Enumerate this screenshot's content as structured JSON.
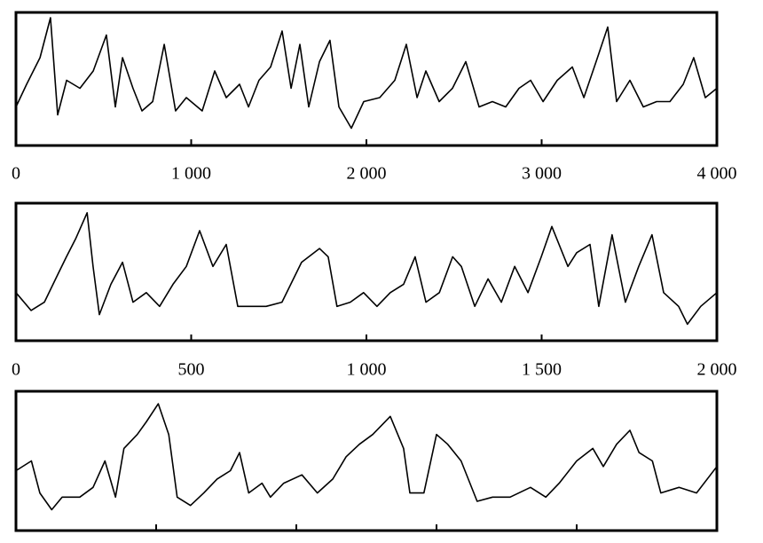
{
  "chart_data": [
    {
      "type": "line",
      "color": "#000000",
      "xlim": [
        0,
        4000
      ],
      "ylim": [
        0,
        10
      ],
      "xticks": [
        0,
        {
          "value": 1000,
          "label": "1 000"
        },
        {
          "value": 2000,
          "label": "2 000"
        },
        {
          "value": 3000,
          "label": "3 000"
        },
        {
          "value": 4000,
          "label": "4 000"
        }
      ],
      "x": [
        0,
        61,
        137,
        197,
        238,
        289,
        365,
        441,
        516,
        567,
        608,
        668,
        719,
        780,
        846,
        911,
        972,
        1063,
        1134,
        1200,
        1276,
        1327,
        1387,
        1453,
        1519,
        1570,
        1620,
        1671,
        1732,
        1792,
        1843,
        1914,
        1985,
        2076,
        2162,
        2228,
        2289,
        2339,
        2415,
        2491,
        2567,
        2643,
        2719,
        2795,
        2871,
        2937,
        3008,
        3089,
        3175,
        3241,
        3311,
        3377,
        3428,
        3504,
        3580,
        3656,
        3732,
        3808,
        3868,
        3934,
        4000
      ],
      "values": [
        2.9,
        4.6,
        6.6,
        9.6,
        2.3,
        4.9,
        4.3,
        5.6,
        8.3,
        2.9,
        6.6,
        4.3,
        2.6,
        3.3,
        7.6,
        2.6,
        3.6,
        2.6,
        5.6,
        3.6,
        4.6,
        2.9,
        4.9,
        5.9,
        8.6,
        4.3,
        7.6,
        2.9,
        6.3,
        7.9,
        2.9,
        1.3,
        3.3,
        3.6,
        4.9,
        7.6,
        3.6,
        5.6,
        3.3,
        4.3,
        6.3,
        2.9,
        3.3,
        2.9,
        4.3,
        4.9,
        3.3,
        4.9,
        5.9,
        3.6,
        6.3,
        8.9,
        3.3,
        4.9,
        2.9,
        3.3,
        3.3,
        4.6,
        6.6,
        3.6,
        4.3
      ]
    },
    {
      "type": "line",
      "color": "#000000",
      "xlim": [
        0,
        2000
      ],
      "ylim": [
        0,
        10
      ],
      "xticks": [
        0,
        500,
        {
          "value": 1000,
          "label": "1 000"
        },
        {
          "value": 1500,
          "label": "1 500"
        },
        {
          "value": 2000,
          "label": "2 000"
        }
      ],
      "x": [
        0,
        43,
        81,
        119,
        144,
        170,
        203,
        220,
        238,
        271,
        304,
        334,
        372,
        410,
        448,
        486,
        524,
        562,
        600,
        633,
        676,
        714,
        759,
        815,
        866,
        891,
        916,
        954,
        992,
        1030,
        1068,
        1106,
        1139,
        1170,
        1208,
        1246,
        1271,
        1309,
        1347,
        1385,
        1423,
        1461,
        1499,
        1529,
        1575,
        1600,
        1638,
        1663,
        1701,
        1739,
        1777,
        1815,
        1848,
        1891,
        1916,
        1954,
        2000
      ],
      "values": [
        3.5,
        2.2,
        2.8,
        4.8,
        6.1,
        7.4,
        9.3,
        5.4,
        1.9,
        4.1,
        5.7,
        2.8,
        3.5,
        2.5,
        4.1,
        5.4,
        8.0,
        5.4,
        7.0,
        2.5,
        2.5,
        2.5,
        2.8,
        5.7,
        6.7,
        6.1,
        2.5,
        2.8,
        3.5,
        2.5,
        3.5,
        4.1,
        6.1,
        2.8,
        3.5,
        6.1,
        5.4,
        2.5,
        4.5,
        2.8,
        5.4,
        3.5,
        6.1,
        8.3,
        5.4,
        6.4,
        7.0,
        2.5,
        7.7,
        2.8,
        5.4,
        7.7,
        3.5,
        2.5,
        1.2,
        2.5,
        3.5
      ]
    },
    {
      "type": "line",
      "color": "#000000",
      "xlim": [
        0,
        1000
      ],
      "ylim": [
        0,
        10
      ],
      "xticks": [
        0,
        200,
        400,
        600,
        800,
        1000
      ],
      "tick_labels": false,
      "x": [
        0,
        22,
        34,
        51,
        66,
        91,
        110,
        127,
        142,
        154,
        173,
        186,
        203,
        218,
        230,
        249,
        268,
        287,
        306,
        319,
        332,
        351,
        363,
        382,
        408,
        430,
        452,
        471,
        490,
        509,
        534,
        553,
        562,
        582,
        600,
        616,
        635,
        658,
        680,
        705,
        734,
        756,
        775,
        800,
        823,
        838,
        857,
        876,
        889,
        908,
        920,
        946,
        971,
        1000
      ],
      "values": [
        4.3,
        5.0,
        2.7,
        1.5,
        2.4,
        2.4,
        3.1,
        5.0,
        2.4,
        5.9,
        6.9,
        7.8,
        9.1,
        6.9,
        2.4,
        1.8,
        2.7,
        3.7,
        4.3,
        5.6,
        2.7,
        3.4,
        2.4,
        3.4,
        4.0,
        2.7,
        3.7,
        5.3,
        6.2,
        6.9,
        8.2,
        5.9,
        2.7,
        2.7,
        6.9,
        6.2,
        5.0,
        2.1,
        2.4,
        2.4,
        3.1,
        2.4,
        3.4,
        5.0,
        5.9,
        4.6,
        6.2,
        7.2,
        5.6,
        5.0,
        2.7,
        3.1,
        2.7,
        4.6
      ]
    }
  ]
}
